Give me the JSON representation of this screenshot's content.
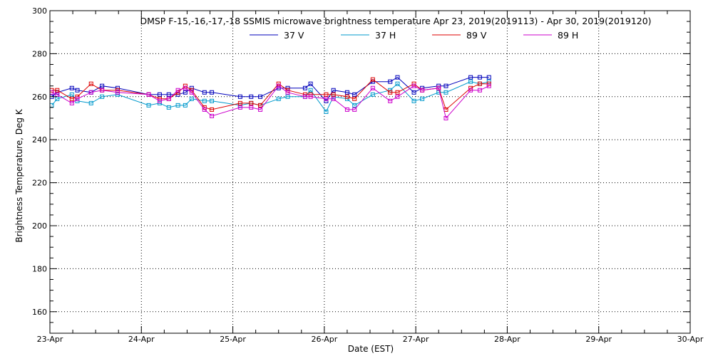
{
  "chart_data": {
    "type": "line",
    "title": "DMSP F-15,-16,-17,-18 SSMIS microwave brightness temperature Apr 23, 2019(2019113) - Apr 30, 2019(2019120)",
    "xlabel": "Date (EST)",
    "ylabel": "Brightness Temperature, Deg K",
    "xlim": [
      0,
      7
    ],
    "ylim": [
      150,
      300
    ],
    "xticks": [
      {
        "v": 0,
        "label": "23-Apr"
      },
      {
        "v": 1,
        "label": "24-Apr"
      },
      {
        "v": 2,
        "label": "25-Apr"
      },
      {
        "v": 3,
        "label": "26-Apr"
      },
      {
        "v": 4,
        "label": "27-Apr"
      },
      {
        "v": 5,
        "label": "28-Apr"
      },
      {
        "v": 6,
        "label": "29-Apr"
      },
      {
        "v": 7,
        "label": "30-Apr"
      }
    ],
    "yticks": [
      {
        "v": 160,
        "label": "160"
      },
      {
        "v": 180,
        "label": "180"
      },
      {
        "v": 200,
        "label": "200"
      },
      {
        "v": 220,
        "label": "220"
      },
      {
        "v": 240,
        "label": "240"
      },
      {
        "v": 260,
        "label": "260"
      },
      {
        "v": 280,
        "label": "280"
      },
      {
        "v": 300,
        "label": "300"
      }
    ],
    "grid": true,
    "legend_position": "top-center",
    "x": [
      0.02,
      0.08,
      0.24,
      0.3,
      0.45,
      0.57,
      0.74,
      1.08,
      1.2,
      1.3,
      1.4,
      1.48,
      1.55,
      1.69,
      1.77,
      2.08,
      2.2,
      2.3,
      2.5,
      2.6,
      2.79,
      2.85,
      3.02,
      3.1,
      3.25,
      3.33,
      3.53,
      3.72,
      3.8,
      3.98,
      4.07,
      4.25,
      4.33,
      4.6,
      4.7,
      4.8
    ],
    "series": [
      {
        "name": "37 V",
        "color": "#0000bb",
        "values": [
          260,
          262,
          264,
          263,
          262,
          265,
          264,
          261,
          261,
          261,
          261,
          262,
          264,
          262,
          262,
          260,
          260,
          260,
          264,
          264,
          264,
          266,
          258,
          263,
          262,
          261,
          267,
          267,
          269,
          262,
          264,
          265,
          265,
          269,
          269,
          269
        ]
      },
      {
        "name": "37 H",
        "color": "#0099cc",
        "values": [
          256,
          259,
          261,
          258,
          257,
          260,
          261,
          256,
          257,
          255,
          256,
          256,
          259,
          258,
          258,
          256,
          257,
          256,
          259,
          260,
          260,
          263,
          253,
          260,
          259,
          256,
          261,
          263,
          266,
          258,
          259,
          262,
          262,
          267,
          266,
          267
        ]
      },
      {
        "name": "89 V",
        "color": "#dd0000",
        "values": [
          263,
          263,
          259,
          260,
          266,
          263,
          263,
          261,
          259,
          259,
          262,
          265,
          263,
          255,
          254,
          257,
          257,
          256,
          266,
          263,
          261,
          261,
          261,
          261,
          260,
          259,
          268,
          262,
          262,
          266,
          263,
          264,
          254,
          264,
          266,
          266
        ]
      },
      {
        "name": "89 H",
        "color": "#cc00cc",
        "values": [
          262,
          261,
          257,
          259,
          262,
          263,
          262,
          261,
          258,
          259,
          263,
          264,
          262,
          254,
          251,
          255,
          255,
          254,
          265,
          262,
          260,
          260,
          259,
          259,
          254,
          254,
          264,
          258,
          260,
          265,
          263,
          264,
          250,
          263,
          263,
          265
        ]
      }
    ]
  }
}
